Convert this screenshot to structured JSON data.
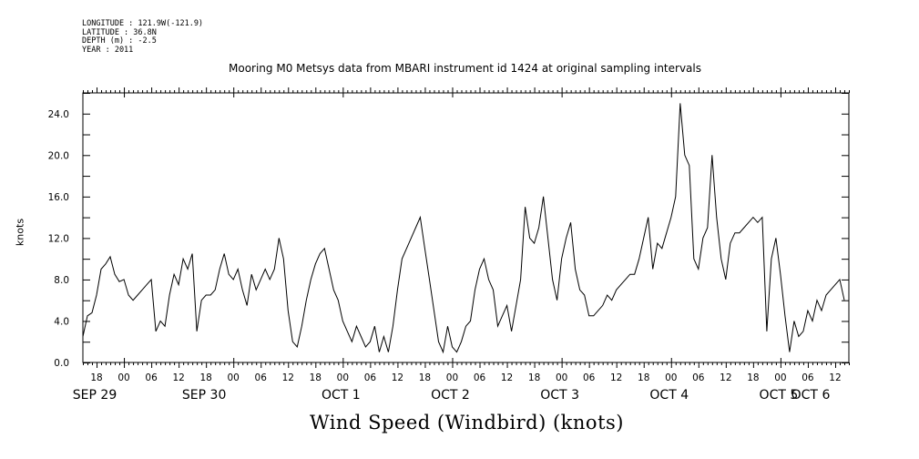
{
  "metadata": {
    "longitude": "LONGITUDE : 121.9W(-121.9)",
    "latitude": "LATITUDE : 36.8N",
    "depth": "DEPTH (m) : -2.5",
    "year": "YEAR : 2011"
  },
  "chart_data": {
    "type": "line",
    "title": "Mooring M0 Metsys data from MBARI instrument id 1424 at original sampling intervals",
    "xlabel": "Wind Speed (Windbird) (knots)",
    "ylabel": "knots",
    "ylim": [
      0,
      26
    ],
    "yticks": [
      "0.0",
      "4.0",
      "8.0",
      "12.0",
      "16.0",
      "20.0",
      "24.0"
    ],
    "x_unit": "hours since SEP 29 00:00",
    "xlim": [
      15,
      183
    ],
    "hour_tick_labels": [
      "18",
      "00",
      "06",
      "12",
      "18",
      "00",
      "06",
      "12",
      "18",
      "00",
      "06",
      "12",
      "18",
      "00",
      "06",
      "12",
      "18",
      "00",
      "06",
      "12",
      "18",
      "00",
      "06",
      "12",
      "18",
      "00",
      "06",
      "12"
    ],
    "day_labels": [
      "SEP 29",
      "SEP 30",
      "OCT  1",
      "OCT  2",
      "OCT  3",
      "OCT  4",
      "OCT  5",
      "OCT  6"
    ],
    "series": [
      {
        "x": [
          15,
          16,
          17,
          18,
          19,
          20,
          21,
          22,
          23,
          24,
          25,
          26,
          27,
          28,
          29,
          30,
          31,
          32,
          33,
          34,
          35,
          36,
          37,
          38,
          39,
          40,
          41,
          42,
          43,
          44,
          45,
          46,
          47,
          48,
          49,
          50,
          51,
          52,
          53,
          54,
          55,
          56,
          57,
          58,
          59,
          60,
          61,
          62,
          63,
          64,
          65,
          66,
          67,
          68,
          69,
          70,
          71,
          72,
          73,
          74,
          75,
          76,
          77,
          78,
          79,
          80,
          81,
          82,
          83,
          84,
          85,
          86,
          87,
          88,
          89,
          90,
          91,
          92,
          93,
          94,
          95,
          96,
          97,
          98,
          99,
          100,
          101,
          102,
          103,
          104,
          105,
          106,
          107,
          108,
          109,
          110,
          111,
          112,
          113,
          114,
          115,
          116,
          117,
          118,
          119,
          120,
          121,
          122,
          123,
          124,
          125,
          126,
          127,
          128,
          129,
          130,
          131,
          132,
          133,
          134,
          135,
          136,
          137,
          138,
          139,
          140,
          141,
          142,
          143,
          144,
          145,
          146,
          147,
          148,
          149,
          150,
          151,
          152,
          153,
          154,
          155,
          156,
          157,
          158,
          159,
          160,
          161,
          162,
          163,
          164,
          165,
          166,
          167,
          168,
          169,
          170,
          171,
          172,
          173,
          174,
          175,
          176,
          177,
          178,
          179,
          180,
          181,
          182
        ],
        "y": [
          2.5,
          4.5,
          4.8,
          6.5,
          9.0,
          9.5,
          10.2,
          8.5,
          7.8,
          8.0,
          6.5,
          6.0,
          6.5,
          7.0,
          7.5,
          8.0,
          3.0,
          4.0,
          3.5,
          6.5,
          8.5,
          7.5,
          10.0,
          9.0,
          10.5,
          3.0,
          6.0,
          6.5,
          6.5,
          7.0,
          9.0,
          10.5,
          8.5,
          8.0,
          9.0,
          7.0,
          5.5,
          8.5,
          7.0,
          8.0,
          9.0,
          8.0,
          9.0,
          12.0,
          10.0,
          5.0,
          2.0,
          1.5,
          3.5,
          6.0,
          8.0,
          9.5,
          10.5,
          11.0,
          9.0,
          7.0,
          6.0,
          4.0,
          3.0,
          2.0,
          3.5,
          2.5,
          1.5,
          2.0,
          3.5,
          1.0,
          2.5,
          1.0,
          3.5,
          7.0,
          10.0,
          11.0,
          12.0,
          13.0,
          14.0,
          11.0,
          8.0,
          5.0,
          2.0,
          1.0,
          3.5,
          1.5,
          1.0,
          2.0,
          3.5,
          4.0,
          7.0,
          9.0,
          10.0,
          8.0,
          7.0,
          3.5,
          4.5,
          5.5,
          3.0,
          5.5,
          8.0,
          15.0,
          12.0,
          11.5,
          13.0,
          16.0,
          12.0,
          8.0,
          6.0,
          10.0,
          12.0,
          13.5,
          9.0,
          7.0,
          6.5,
          4.5,
          4.5,
          5.0,
          5.5,
          6.5,
          6.0,
          7.0,
          7.5,
          8.0,
          8.5,
          8.5,
          10.0,
          12.0,
          14.0,
          9.0,
          11.5,
          11.0,
          12.5,
          14.0,
          16.0,
          25.0,
          20.0,
          19.0,
          10.0,
          9.0,
          12.0,
          13.0,
          20.0,
          14.0,
          10.0,
          8.0,
          11.5,
          12.5,
          12.5,
          13.0,
          13.5,
          14.0,
          13.5,
          14.0,
          3.0,
          10.0,
          12.0,
          8.5,
          4.5,
          1.0,
          4.0,
          2.5,
          3.0,
          5.0,
          4.0,
          6.0,
          5.0,
          6.5,
          7.0,
          7.5,
          8.0,
          6.0
        ]
      }
    ]
  }
}
